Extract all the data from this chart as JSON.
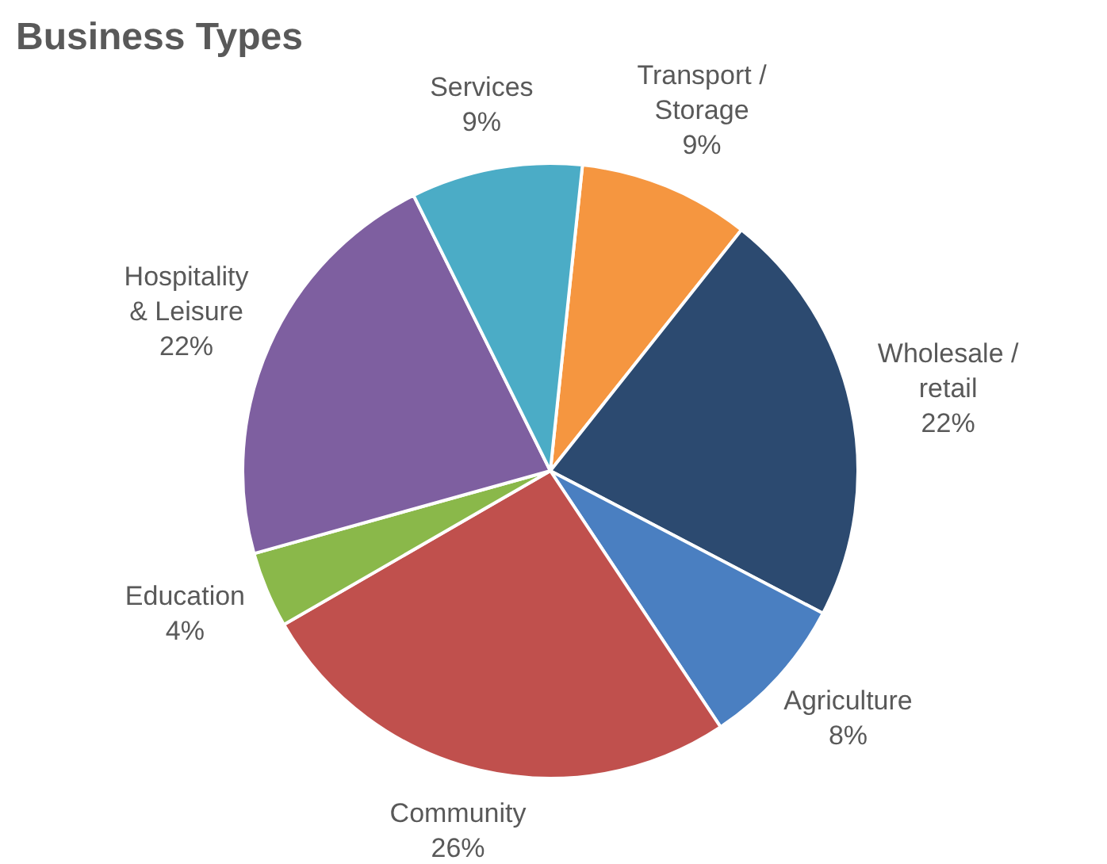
{
  "chart_data": {
    "type": "pie",
    "title": "Business Types",
    "categories": [
      "Transport / Storage",
      "Wholesale / retail",
      "Agriculture",
      "Community",
      "Education",
      "Hospitality & Leisure",
      "Services"
    ],
    "values": [
      9,
      22,
      8,
      26,
      4,
      22,
      9
    ],
    "value_labels": [
      "9%",
      "22%",
      "8%",
      "26%",
      "4%",
      "22%",
      "9%"
    ],
    "colors": [
      "#f59640",
      "#2c4a70",
      "#4a7fc1",
      "#c0504d",
      "#8ab84a",
      "#7e5fa0",
      "#4bacc6"
    ],
    "legend": false
  }
}
